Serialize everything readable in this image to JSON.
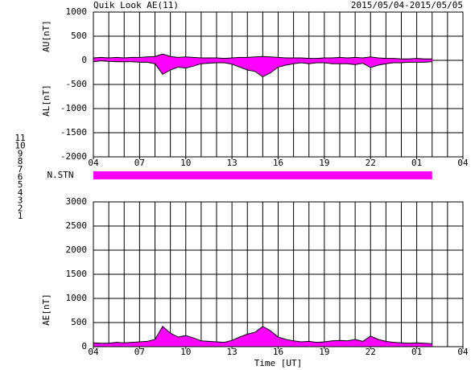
{
  "header": {
    "title": "Quik Look AE(11)",
    "date_range": "2015/05/04-2015/05/05"
  },
  "station_legend": [
    {
      "label": "11",
      "color": "#00e0e0"
    },
    {
      "label": "10",
      "color": "#ff00ff"
    },
    {
      "label": "9",
      "color": "#0000cc"
    },
    {
      "label": "8",
      "color": "#e8e800"
    },
    {
      "label": "7",
      "color": "#a0e000"
    },
    {
      "label": "6",
      "color": "#ff0000"
    },
    {
      "label": "5",
      "color": "#c8c8c8"
    },
    {
      "label": "4",
      "color": "#a0a0a0"
    },
    {
      "label": "3",
      "color": "#008080"
    },
    {
      "label": "2",
      "color": "#800080"
    },
    {
      "label": "1",
      "color": "#0000ff"
    }
  ],
  "n_stn_label": "N.STN",
  "chart_data": [
    {
      "type": "area",
      "ylabels": [
        "AU[nT]",
        "AL[nT]"
      ],
      "x": [
        4,
        4.5,
        5,
        5.5,
        6,
        6.5,
        7,
        7.5,
        8,
        8.5,
        9,
        9.5,
        10,
        10.5,
        11,
        11.5,
        12,
        12.5,
        13,
        13.5,
        14,
        14.5,
        15,
        15.5,
        16,
        16.5,
        17,
        17.5,
        18,
        18.5,
        19,
        19.5,
        20,
        20.5,
        21,
        21.5,
        22,
        22.5,
        23,
        23.5,
        24,
        24.5,
        25,
        25.5,
        26
      ],
      "series": [
        {
          "name": "AU",
          "color": "#ff00ff",
          "values": [
            50,
            60,
            50,
            60,
            50,
            60,
            60,
            70,
            80,
            130,
            80,
            60,
            70,
            60,
            50,
            50,
            50,
            40,
            50,
            60,
            60,
            70,
            80,
            70,
            60,
            50,
            50,
            50,
            40,
            40,
            50,
            50,
            60,
            50,
            60,
            50,
            70,
            50,
            40,
            40,
            30,
            30,
            40,
            30,
            30
          ]
        },
        {
          "name": "AL",
          "color": "#ff00ff",
          "values": [
            -30,
            -10,
            -20,
            -30,
            -30,
            -30,
            -40,
            -40,
            -70,
            -290,
            -200,
            -140,
            -160,
            -120,
            -70,
            -60,
            -50,
            -50,
            -80,
            -140,
            -200,
            -230,
            -340,
            -260,
            -140,
            -100,
            -70,
            -50,
            -70,
            -50,
            -50,
            -70,
            -70,
            -70,
            -90,
            -60,
            -150,
            -100,
            -70,
            -50,
            -50,
            -40,
            -40,
            -40,
            -30
          ]
        }
      ],
      "xlim": [
        4,
        28
      ],
      "xticks": [
        {
          "value": 4,
          "label": "04"
        },
        {
          "value": 7,
          "label": "07"
        },
        10,
        13,
        16,
        19,
        22,
        {
          "value": 25,
          "label": "01"
        },
        {
          "value": 28,
          "label": "04"
        }
      ],
      "ylim": [
        -2000,
        1000
      ],
      "yticks": [
        -2000,
        -1500,
        -1000,
        -500,
        0,
        500,
        1000
      ],
      "grid": true
    },
    {
      "type": "area",
      "ylabels": [
        "AE[nT]"
      ],
      "xlabel": "Time [UT]",
      "x": [
        4,
        4.5,
        5,
        5.5,
        6,
        6.5,
        7,
        7.5,
        8,
        8.5,
        9,
        9.5,
        10,
        10.5,
        11,
        11.5,
        12,
        12.5,
        13,
        13.5,
        14,
        14.5,
        15,
        15.5,
        16,
        16.5,
        17,
        17.5,
        18,
        18.5,
        19,
        19.5,
        20,
        20.5,
        21,
        21.5,
        22,
        22.5,
        23,
        23.5,
        24,
        24.5,
        25,
        25.5,
        26
      ],
      "series": [
        {
          "name": "AE",
          "color": "#ff00ff",
          "values": [
            80,
            70,
            70,
            90,
            80,
            90,
            100,
            110,
            150,
            420,
            280,
            200,
            230,
            180,
            120,
            110,
            100,
            90,
            130,
            200,
            260,
            300,
            420,
            330,
            200,
            150,
            120,
            100,
            110,
            90,
            100,
            120,
            130,
            120,
            150,
            110,
            220,
            150,
            110,
            90,
            80,
            70,
            80,
            70,
            60
          ]
        }
      ],
      "xlim": [
        4,
        28
      ],
      "xticks": [
        {
          "value": 4,
          "label": "04"
        },
        {
          "value": 7,
          "label": "07"
        },
        10,
        13,
        16,
        19,
        22,
        {
          "value": 25,
          "label": "01"
        },
        {
          "value": 28,
          "label": "04"
        }
      ],
      "ylim": [
        0,
        3000
      ],
      "yticks": [
        0,
        500,
        1000,
        1500,
        2000,
        2500,
        3000
      ],
      "grid": true
    }
  ]
}
